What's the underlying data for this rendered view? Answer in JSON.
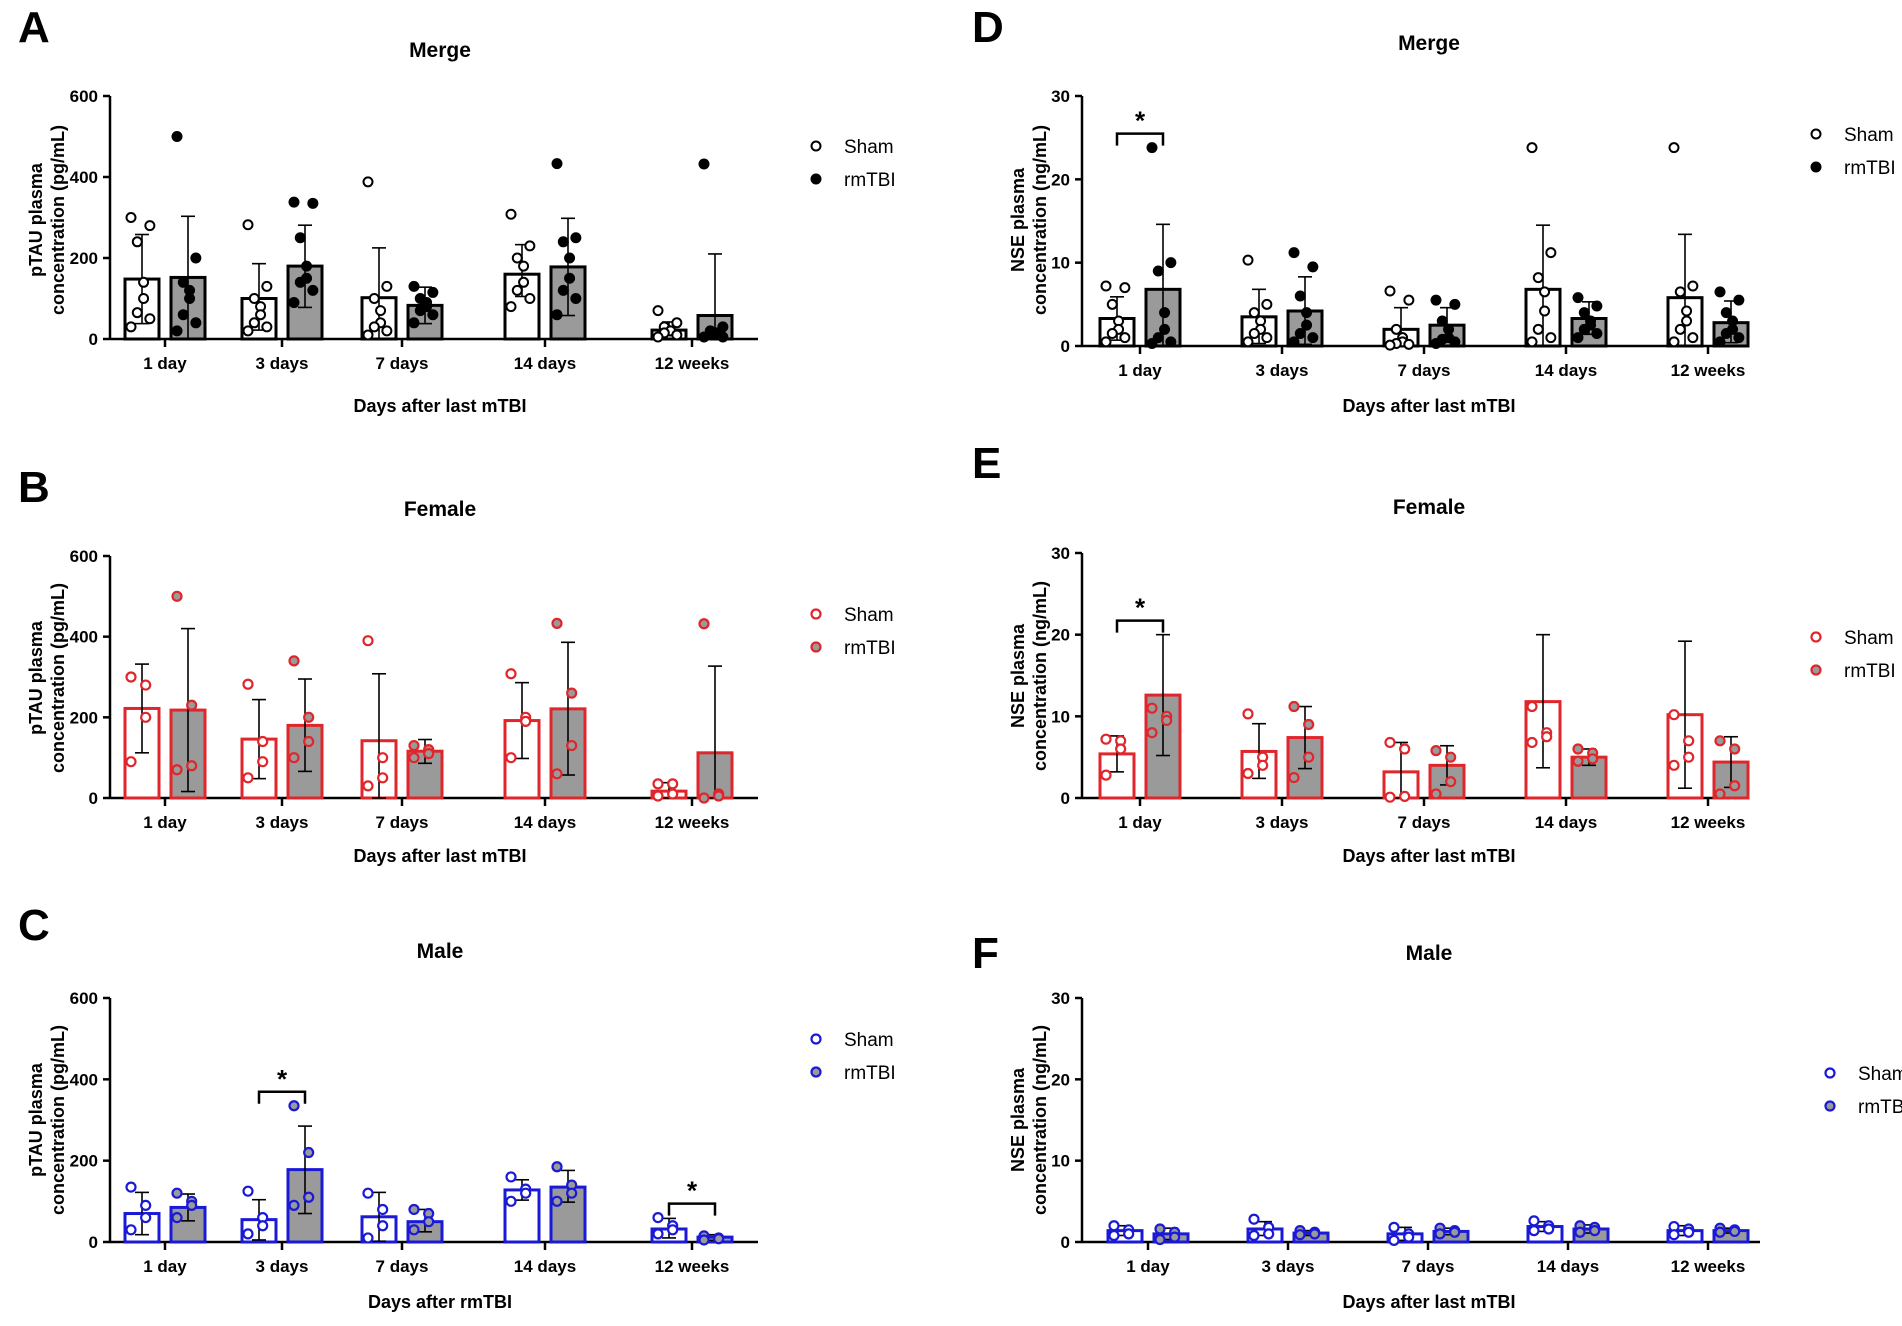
{
  "chart_data": [
    {
      "panel": "A",
      "type": "bar",
      "title": "Merge",
      "xlabel": "Days after last mTBI",
      "ylabel": [
        "pTAU plasma",
        "concentration (pg/mL)"
      ],
      "ylim": [
        0,
        600
      ],
      "yticks": [
        0,
        200,
        400,
        600
      ],
      "categories": [
        "1 day",
        "3 days",
        "7 days",
        "14 days",
        "12 weeks"
      ],
      "color": "#000000",
      "series": [
        {
          "name": "Sham",
          "values": [
            148,
            100,
            102,
            160,
            22
          ],
          "errors": [
            [
              38,
              258
            ],
            [
              22,
              186
            ],
            [
              0,
              225
            ],
            [
              105,
              233
            ],
            [
              10,
              42
            ]
          ],
          "points": [
            [
              300,
              280,
              240,
              140,
              100,
              65,
              50,
              30
            ],
            [
              282,
              130,
              100,
              80,
              60,
              40,
              30,
              20
            ],
            [
              388,
              130,
              100,
              70,
              40,
              30,
              20,
              10
            ],
            [
              308,
              230,
              200,
              180,
              140,
              120,
              100,
              80
            ],
            [
              70,
              40,
              30,
              20,
              20,
              15,
              10,
              5
            ]
          ]
        },
        {
          "name": "rmTBI",
          "values": [
            152,
            180,
            83,
            178,
            58
          ],
          "errors": [
            [
              0,
              303
            ],
            [
              78,
              281
            ],
            [
              38,
              128
            ],
            [
              58,
              298
            ],
            [
              0,
              210
            ]
          ],
          "points": [
            [
              500,
              200,
              140,
              120,
              100,
              60,
              40,
              20
            ],
            [
              338,
              335,
              250,
              180,
              150,
              140,
              120,
              90
            ],
            [
              130,
              115,
              100,
              90,
              80,
              70,
              60,
              40
            ],
            [
              433,
              250,
              240,
              200,
              150,
              120,
              100,
              60
            ],
            [
              432,
              30,
              20,
              15,
              10,
              10,
              5,
              5
            ]
          ]
        }
      ]
    },
    {
      "panel": "B",
      "type": "bar",
      "title": "Female",
      "xlabel": "Days after last mTBI",
      "ylabel": [
        "pTAU plasma",
        "concentration (pg/mL)"
      ],
      "ylim": [
        0,
        600
      ],
      "yticks": [
        0,
        200,
        400,
        600
      ],
      "categories": [
        "1 day",
        "3 days",
        "7 days",
        "14 days",
        "12 weeks"
      ],
      "color": "#e0262b",
      "series": [
        {
          "name": "Sham",
          "values": [
            222,
            146,
            142,
            192,
            17
          ],
          "errors": [
            [
              112,
              332
            ],
            [
              48,
              244
            ],
            [
              0,
              308
            ],
            [
              98,
              286
            ],
            [
              0,
              38
            ]
          ],
          "points": [
            [
              300,
              280,
              200,
              90
            ],
            [
              282,
              140,
              90,
              50
            ],
            [
              390,
              100,
              50,
              30
            ],
            [
              308,
              200,
              190,
              100
            ],
            [
              35,
              35,
              10,
              5
            ]
          ]
        },
        {
          "name": "rmTBI",
          "values": [
            218,
            180,
            116,
            221,
            112
          ],
          "errors": [
            [
              16,
              420
            ],
            [
              66,
              295
            ],
            [
              86,
              145
            ],
            [
              57,
              386
            ],
            [
              0,
              327
            ]
          ],
          "points": [
            [
              500,
              230,
              80,
              70
            ],
            [
              340,
              200,
              140,
              100
            ],
            [
              130,
              120,
              110,
              100
            ],
            [
              433,
              260,
              130,
              60
            ],
            [
              432,
              10,
              5,
              0
            ]
          ]
        }
      ]
    },
    {
      "panel": "C",
      "type": "bar",
      "title": "Male",
      "xlabel": "Days after rmTBI",
      "ylabel": [
        "pTAU plasma",
        "concentration (pg/mL)"
      ],
      "ylim": [
        0,
        600
      ],
      "yticks": [
        0,
        200,
        400,
        600
      ],
      "categories": [
        "1 day",
        "3 days",
        "7 days",
        "14 days",
        "12 weeks"
      ],
      "color": "#1a1ad6",
      "significance": [
        {
          "category": "3 days",
          "label": "*"
        },
        {
          "category": "12 weeks",
          "label": "*"
        }
      ],
      "series": [
        {
          "name": "Sham",
          "values": [
            70,
            55,
            62,
            128,
            32
          ],
          "errors": [
            [
              18,
              122
            ],
            [
              5,
              104
            ],
            [
              2,
              122
            ],
            [
              103,
              153
            ],
            [
              10,
              58
            ]
          ],
          "points": [
            [
              135,
              90,
              60,
              30
            ],
            [
              125,
              60,
              40,
              20
            ],
            [
              120,
              80,
              40,
              10
            ],
            [
              160,
              130,
              120,
              100
            ],
            [
              60,
              40,
              30,
              20
            ]
          ]
        },
        {
          "name": "rmTBI",
          "values": [
            85,
            178,
            50,
            135,
            12
          ],
          "errors": [
            [
              52,
              118
            ],
            [
              70,
              285
            ],
            [
              25,
              80
            ],
            [
              98,
              176
            ],
            [
              4,
              18
            ]
          ],
          "points": [
            [
              120,
              100,
              90,
              60
            ],
            [
              335,
              220,
              110,
              90
            ],
            [
              80,
              70,
              50,
              30
            ],
            [
              185,
              140,
              120,
              100
            ],
            [
              15,
              10,
              8,
              5
            ]
          ]
        }
      ]
    },
    {
      "panel": "D",
      "type": "bar",
      "title": "Merge",
      "xlabel": "Days after last mTBI",
      "ylabel": [
        "NSE plasma",
        "concentration (ng/mL)"
      ],
      "ylim": [
        0,
        30
      ],
      "yticks": [
        0,
        10,
        20,
        30
      ],
      "categories": [
        "1 day",
        "3 days",
        "7 days",
        "14 days",
        "12 weeks"
      ],
      "color": "#000000",
      "significance": [
        {
          "category": "1 day",
          "label": "*"
        }
      ],
      "series": [
        {
          "name": "Sham",
          "values": [
            3.3,
            3.5,
            2.0,
            6.8,
            5.8
          ],
          "errors": [
            [
              0.7,
              5.9
            ],
            [
              0.3,
              6.8
            ],
            [
              0,
              4.6
            ],
            [
              0,
              14.5
            ],
            [
              0,
              13.4
            ]
          ],
          "points": [
            [
              7.2,
              7.0,
              5.0,
              3.0,
              2.0,
              1.5,
              1.0,
              0.5
            ],
            [
              10.3,
              5.0,
              4.0,
              3.0,
              2.0,
              1.5,
              1.0,
              0.5
            ],
            [
              6.6,
              5.5,
              2.0,
              1.0,
              0.5,
              0.3,
              0.2,
              0.1
            ],
            [
              23.8,
              11.2,
              8.2,
              6.5,
              4.2,
              2.0,
              1.0,
              0.5
            ],
            [
              23.8,
              7.2,
              6.5,
              4.2,
              3.0,
              2.0,
              1.0,
              0.5
            ]
          ]
        },
        {
          "name": "rmTBI",
          "values": [
            6.8,
            4.2,
            2.5,
            3.3,
            2.8
          ],
          "errors": [
            [
              0,
              14.6
            ],
            [
              0.2,
              8.3
            ],
            [
              0.5,
              4.6
            ],
            [
              1.4,
              5.3
            ],
            [
              0.4,
              5.4
            ]
          ],
          "points": [
            [
              23.8,
              10.0,
              9.0,
              4.0,
              2.0,
              1.0,
              0.5,
              0.3
            ],
            [
              11.2,
              9.5,
              6.0,
              4.0,
              2.5,
              1.5,
              1.0,
              0.5
            ],
            [
              5.5,
              5.0,
              3.0,
              2.0,
              1.0,
              0.8,
              0.5,
              0.3
            ],
            [
              5.8,
              4.8,
              4.0,
              3.0,
              2.5,
              2.0,
              1.5,
              1.0
            ],
            [
              6.5,
              5.5,
              4.0,
              3.0,
              2.0,
              1.5,
              1.0,
              0.5
            ]
          ]
        }
      ]
    },
    {
      "panel": "E",
      "type": "bar",
      "title": "Female",
      "xlabel": "Days after last mTBI",
      "ylabel": [
        "NSE plasma",
        "concentration (ng/mL)"
      ],
      "ylim": [
        0,
        30
      ],
      "yticks": [
        0,
        10,
        20,
        30
      ],
      "categories": [
        "1 day",
        "3 days",
        "7 days",
        "14 days",
        "12 weeks"
      ],
      "color": "#e0262b",
      "significance": [
        {
          "category": "1 day",
          "label": "*"
        }
      ],
      "series": [
        {
          "name": "Sham",
          "values": [
            5.4,
            5.7,
            3.2,
            11.8,
            10.2
          ],
          "errors": [
            [
              3.2,
              7.6
            ],
            [
              2.4,
              9.1
            ],
            [
              0,
              6.8
            ],
            [
              3.7,
              20.0
            ],
            [
              1.2,
              19.2
            ]
          ],
          "points": [
            [
              7.2,
              7.0,
              6.0,
              2.8
            ],
            [
              10.3,
              5.0,
              4.0,
              3.0
            ],
            [
              6.8,
              6.0,
              0.2,
              0.1
            ],
            [
              11.2,
              8.0,
              7.5,
              6.8
            ],
            [
              10.2,
              7.0,
              5.0,
              4.0
            ]
          ]
        },
        {
          "name": "rmTBI",
          "values": [
            12.6,
            7.4,
            4.0,
            5.0,
            4.4
          ],
          "errors": [
            [
              5.2,
              20.0
            ],
            [
              3.6,
              11.2
            ],
            [
              1.6,
              6.4
            ],
            [
              4.0,
              6.0
            ],
            [
              1.3,
              7.5
            ]
          ],
          "points": [
            [
              11.0,
              10.0,
              9.5,
              8.0
            ],
            [
              11.2,
              9.0,
              5.0,
              2.5
            ],
            [
              5.8,
              5.0,
              2.0,
              0.5
            ],
            [
              6.0,
              5.5,
              4.8,
              4.5
            ],
            [
              7.0,
              6.0,
              1.5,
              0.5
            ]
          ]
        }
      ]
    },
    {
      "panel": "F",
      "type": "bar",
      "title": "Male",
      "xlabel": "Days after last mTBI",
      "ylabel": [
        "NSE plasma",
        "concentration (ng/mL)"
      ],
      "ylim": [
        0,
        30
      ],
      "yticks": [
        0,
        10,
        20,
        30
      ],
      "categories": [
        "1 day",
        "3 days",
        "7 days",
        "14 days",
        "12 weeks"
      ],
      "color": "#1a1ad6",
      "series": [
        {
          "name": "Sham",
          "values": [
            1.4,
            1.6,
            1.0,
            1.9,
            1.4
          ],
          "errors": [
            [
              0.8,
              2.0
            ],
            [
              0.8,
              2.5
            ],
            [
              0.2,
              1.8
            ],
            [
              1.3,
              2.5
            ],
            [
              0.8,
              2.0
            ]
          ],
          "points": [
            [
              2.0,
              1.5,
              1.0,
              0.8
            ],
            [
              2.8,
              1.8,
              1.0,
              0.8
            ],
            [
              1.8,
              1.0,
              0.6,
              0.2
            ],
            [
              2.6,
              2.0,
              1.6,
              1.4
            ],
            [
              1.9,
              1.6,
              1.2,
              0.9
            ]
          ]
        },
        {
          "name": "rmTBI",
          "values": [
            1.0,
            1.1,
            1.3,
            1.6,
            1.4
          ],
          "errors": [
            [
              0.3,
              1.7
            ],
            [
              0.8,
              1.4
            ],
            [
              0.9,
              1.7
            ],
            [
              1.1,
              2.1
            ],
            [
              1.1,
              1.7
            ]
          ],
          "points": [
            [
              1.6,
              1.2,
              0.6,
              0.3
            ],
            [
              1.4,
              1.2,
              1.0,
              0.9
            ],
            [
              1.7,
              1.4,
              1.2,
              1.0
            ],
            [
              2.0,
              1.8,
              1.4,
              1.2
            ],
            [
              1.7,
              1.5,
              1.3,
              1.2
            ]
          ]
        }
      ]
    }
  ]
}
